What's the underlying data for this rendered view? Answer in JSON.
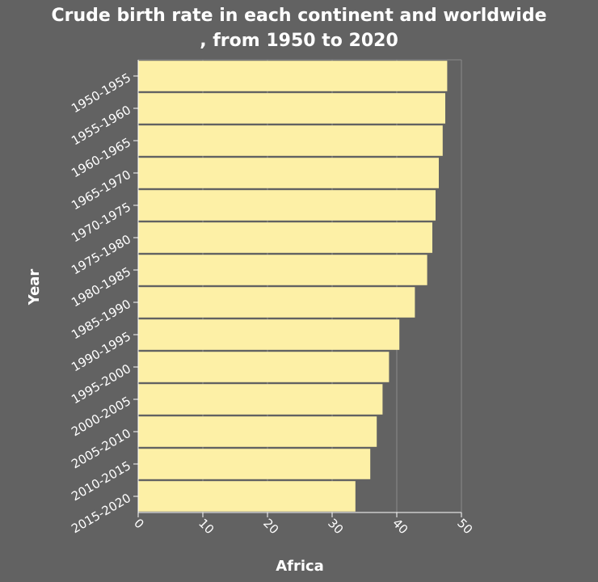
{
  "chart_data": {
    "type": "bar",
    "orientation": "horizontal",
    "title_lines": [
      "Crude birth rate in each continent and worldwide",
      ", from 1950 to 2020"
    ],
    "xlabel": "Africa",
    "ylabel": "Year",
    "categories": [
      "1950-1955",
      "1955-1960",
      "1960-1965",
      "1965-1970",
      "1970-1975",
      "1975-1980",
      "1980-1985",
      "1985-1990",
      "1990-1995",
      "1995-2000",
      "2000-2005",
      "2005-2010",
      "2010-2015",
      "2015-2020"
    ],
    "values": [
      47.8,
      47.5,
      47.1,
      46.5,
      46.0,
      45.5,
      44.7,
      42.8,
      40.4,
      38.8,
      37.8,
      36.9,
      35.9,
      33.6
    ],
    "xlim": [
      0,
      50
    ],
    "xticks": [
      0,
      10,
      20,
      30,
      40,
      50
    ],
    "grid": "vertical",
    "legend": "none",
    "colors": {
      "bar": "#fdf0a6",
      "background": "#626262",
      "grid": "#8a8a8a",
      "text": "#ffffff"
    }
  }
}
